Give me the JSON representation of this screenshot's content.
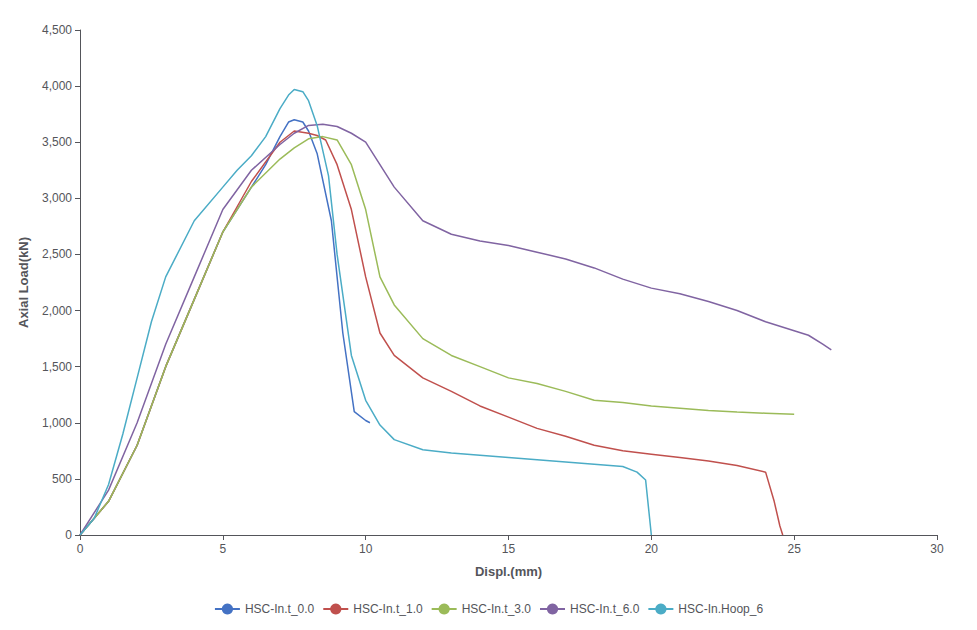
{
  "chart_data": {
    "type": "line",
    "xlabel": "Displ.(mm)",
    "ylabel": "Axial Load(kN)",
    "xlim": [
      0,
      30
    ],
    "ylim": [
      0,
      4500
    ],
    "xticks": [
      0,
      5,
      10,
      15,
      20,
      25,
      30
    ],
    "yticks": [
      0,
      500,
      1000,
      1500,
      2000,
      2500,
      3000,
      3500,
      4000,
      4500
    ],
    "grid": false,
    "legend": "bottom",
    "series": [
      {
        "name": "HSC-In.t_0.0",
        "color": "#4472C4",
        "x": [
          0,
          1.0,
          2.0,
          3.0,
          4.0,
          5.0,
          6.0,
          6.5,
          7.0,
          7.3,
          7.5,
          7.8,
          8.0,
          8.3,
          8.8,
          9.2,
          9.6,
          10.0,
          10.15
        ],
        "values": [
          0,
          300,
          800,
          1500,
          2100,
          2700,
          3100,
          3300,
          3550,
          3680,
          3700,
          3680,
          3600,
          3400,
          2800,
          1800,
          1100,
          1020,
          1000
        ]
      },
      {
        "name": "HSC-In.t_1.0",
        "color": "#C0504D",
        "x": [
          0,
          1.0,
          2.0,
          3.0,
          4.0,
          5.0,
          6.0,
          7.0,
          7.5,
          8.0,
          8.3,
          8.6,
          9.0,
          9.5,
          10.0,
          10.5,
          11.0,
          12.0,
          13.0,
          14.0,
          15.0,
          16.0,
          17.0,
          18.0,
          19.0,
          20.0,
          21.0,
          22.0,
          23.0,
          24.0,
          24.3,
          24.5,
          24.6
        ],
        "values": [
          0,
          300,
          800,
          1500,
          2100,
          2700,
          3150,
          3500,
          3600,
          3580,
          3560,
          3520,
          3300,
          2900,
          2300,
          1800,
          1600,
          1400,
          1280,
          1150,
          1050,
          950,
          880,
          800,
          750,
          720,
          690,
          660,
          620,
          560,
          300,
          80,
          0
        ]
      },
      {
        "name": "HSC-In.t_3.0",
        "color": "#9BBB59",
        "x": [
          0,
          1.0,
          2.0,
          3.0,
          4.0,
          5.0,
          6.0,
          7.0,
          7.5,
          8.0,
          8.5,
          9.0,
          9.5,
          10.0,
          10.5,
          11.0,
          12.0,
          13.0,
          14.0,
          15.0,
          16.0,
          17.0,
          18.0,
          19.0,
          20.0,
          21.0,
          22.0,
          23.0,
          24.0,
          25.0
        ],
        "values": [
          0,
          300,
          800,
          1500,
          2100,
          2700,
          3100,
          3350,
          3450,
          3530,
          3550,
          3520,
          3300,
          2900,
          2300,
          2050,
          1750,
          1600,
          1500,
          1400,
          1350,
          1280,
          1200,
          1180,
          1150,
          1130,
          1110,
          1095,
          1085,
          1075
        ]
      },
      {
        "name": "HSC-In.t_6.0",
        "color": "#8064A2",
        "x": [
          0,
          1.0,
          2.0,
          3.0,
          4.0,
          5.0,
          6.0,
          7.0,
          7.5,
          8.0,
          8.5,
          9.0,
          9.5,
          10.0,
          11.0,
          12.0,
          13.0,
          14.0,
          15.0,
          16.0,
          17.0,
          18.0,
          19.0,
          20.0,
          21.0,
          22.0,
          23.0,
          24.0,
          25.0,
          25.5,
          26.0,
          26.3
        ],
        "values": [
          0,
          400,
          1000,
          1700,
          2300,
          2900,
          3250,
          3480,
          3580,
          3650,
          3660,
          3640,
          3580,
          3500,
          3100,
          2800,
          2680,
          2620,
          2580,
          2520,
          2460,
          2380,
          2280,
          2200,
          2150,
          2080,
          2000,
          1900,
          1820,
          1780,
          1700,
          1650
        ]
      },
      {
        "name": "HSC-In.Hoop_6",
        "color": "#4BACC6",
        "x": [
          0,
          0.5,
          1.0,
          1.5,
          2.0,
          2.5,
          3.0,
          4.0,
          5.0,
          5.5,
          6.0,
          6.5,
          7.0,
          7.3,
          7.5,
          7.8,
          8.0,
          8.3,
          8.7,
          9.0,
          9.5,
          10.0,
          10.5,
          11.0,
          12.0,
          13.0,
          14.0,
          15.0,
          16.0,
          17.0,
          18.0,
          19.0,
          19.5,
          19.8,
          20.0
        ],
        "values": [
          0,
          150,
          450,
          900,
          1400,
          1900,
          2300,
          2800,
          3100,
          3250,
          3380,
          3550,
          3800,
          3920,
          3970,
          3950,
          3870,
          3650,
          3200,
          2500,
          1600,
          1200,
          980,
          850,
          760,
          730,
          710,
          690,
          670,
          650,
          630,
          610,
          560,
          490,
          0
        ]
      }
    ]
  }
}
